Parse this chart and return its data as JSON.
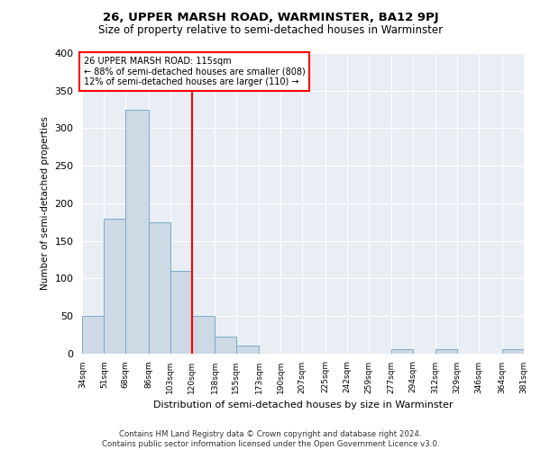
{
  "title": "26, UPPER MARSH ROAD, WARMINSTER, BA12 9PJ",
  "subtitle": "Size of property relative to semi-detached houses in Warminster",
  "xlabel": "Distribution of semi-detached houses by size in Warminster",
  "ylabel": "Number of semi-detached properties",
  "footnote": "Contains HM Land Registry data © Crown copyright and database right 2024.\nContains public sector information licensed under the Open Government Licence v3.0.",
  "bin_labels": [
    "34sqm",
    "51sqm",
    "68sqm",
    "86sqm",
    "103sqm",
    "120sqm",
    "138sqm",
    "155sqm",
    "173sqm",
    "190sqm",
    "207sqm",
    "225sqm",
    "242sqm",
    "259sqm",
    "277sqm",
    "294sqm",
    "312sqm",
    "329sqm",
    "346sqm",
    "364sqm",
    "381sqm"
  ],
  "bar_values": [
    50,
    180,
    325,
    175,
    110,
    50,
    22,
    10,
    0,
    0,
    0,
    0,
    0,
    0,
    5,
    0,
    5,
    0,
    0,
    5,
    0
  ],
  "bar_color": "#cdd9e5",
  "bar_edge_color": "#7aaac8",
  "vline_x": 120,
  "vline_color": "red",
  "annotation_text": "26 UPPER MARSH ROAD: 115sqm\n← 88% of semi-detached houses are smaller (808)\n12% of semi-detached houses are larger (110) →",
  "ylim": [
    0,
    400
  ],
  "yticks": [
    0,
    50,
    100,
    150,
    200,
    250,
    300,
    350,
    400
  ],
  "bin_edges": [
    34,
    51,
    68,
    86,
    103,
    120,
    138,
    155,
    173,
    190,
    207,
    225,
    242,
    259,
    277,
    294,
    312,
    329,
    346,
    364,
    381
  ]
}
